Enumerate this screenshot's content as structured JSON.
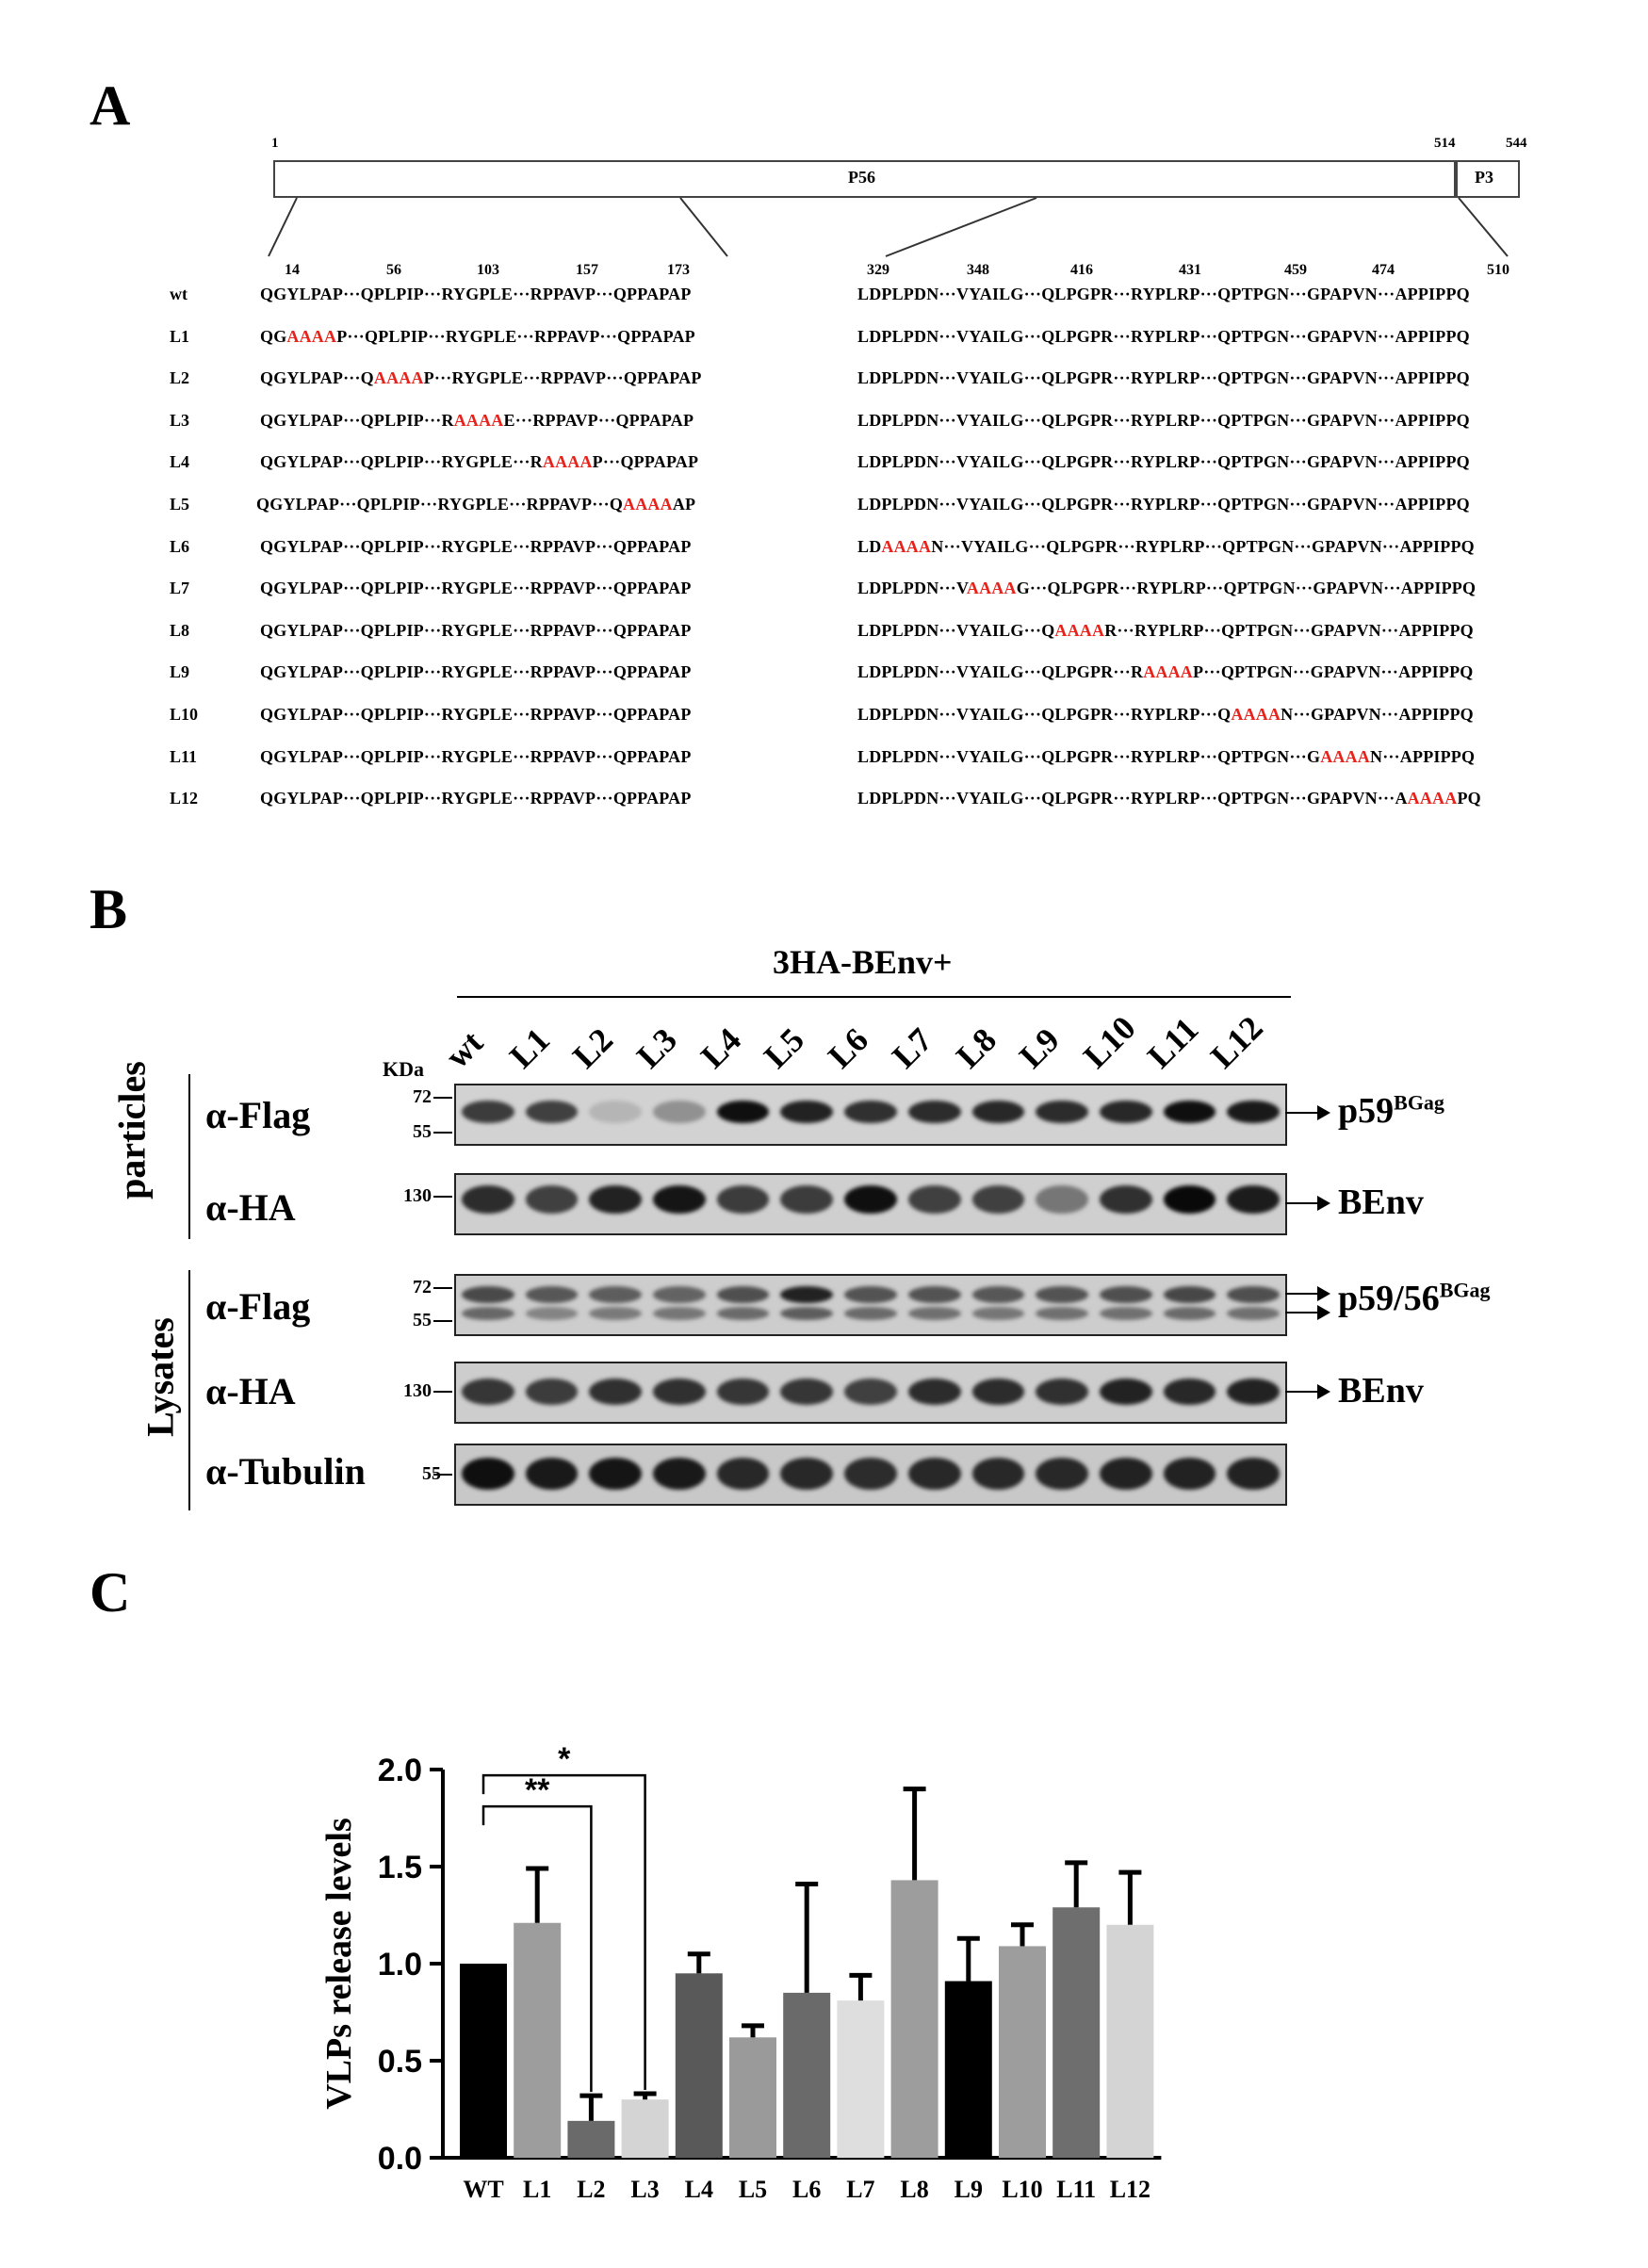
{
  "panelA": {
    "letter": "A",
    "domain_start": "1",
    "domain_boundary": "514",
    "domain_end": "544",
    "domain_main": "P56",
    "domain_small": "P3",
    "left_positions": [
      "14",
      "56",
      "103",
      "157",
      "173"
    ],
    "right_positions": [
      "329",
      "348",
      "416",
      "431",
      "459",
      "474",
      "510"
    ],
    "sep": "···",
    "rows": [
      {
        "label": "wt",
        "left": [
          [
            "QGYLPAP"
          ],
          [
            "QPLPIP"
          ],
          [
            "RYGPLE"
          ],
          [
            "RPPAVP"
          ],
          [
            "QPPAPAP"
          ]
        ],
        "right": [
          [
            "LDPLPDN"
          ],
          [
            "VYAILG"
          ],
          [
            "QLPGPR"
          ],
          [
            "RYPLRP"
          ],
          [
            "QPTPGN"
          ],
          [
            "GPAPVN"
          ],
          [
            "APPIPPQ"
          ]
        ]
      },
      {
        "label": "L1",
        "left": [
          [
            "QG",
            "AAAA",
            "P"
          ],
          [
            "QPLPIP"
          ],
          [
            "RYGPLE"
          ],
          [
            "RPPAVP"
          ],
          [
            "QPPAPAP"
          ]
        ],
        "right": [
          [
            "LDPLPDN"
          ],
          [
            "VYAILG"
          ],
          [
            "QLPGPR"
          ],
          [
            "RYPLRP"
          ],
          [
            "QPTPGN"
          ],
          [
            "GPAPVN"
          ],
          [
            "APPIPPQ"
          ]
        ]
      },
      {
        "label": "L2",
        "left": [
          [
            "QGYLPAP"
          ],
          [
            "Q",
            "AAAA",
            "P"
          ],
          [
            "RYGPLE"
          ],
          [
            "RPPAVP"
          ],
          [
            "QPPAPAP"
          ]
        ],
        "right": [
          [
            "LDPLPDN"
          ],
          [
            "VYAILG"
          ],
          [
            "QLPGPR"
          ],
          [
            "RYPLRP"
          ],
          [
            "QPTPGN"
          ],
          [
            "GPAPVN"
          ],
          [
            "APPIPPQ"
          ]
        ]
      },
      {
        "label": "L3",
        "left": [
          [
            "QGYLPAP"
          ],
          [
            "QPLPIP"
          ],
          [
            "R",
            "AAAA",
            "E"
          ],
          [
            "RPPAVP"
          ],
          [
            "QPPAPAP"
          ]
        ],
        "right": [
          [
            "LDPLPDN"
          ],
          [
            "VYAILG"
          ],
          [
            "QLPGPR"
          ],
          [
            "RYPLRP"
          ],
          [
            "QPTPGN"
          ],
          [
            "GPAPVN"
          ],
          [
            "APPIPPQ"
          ]
        ]
      },
      {
        "label": "L4",
        "left": [
          [
            "QGYLPAP"
          ],
          [
            "QPLPIP"
          ],
          [
            "RYGPLE"
          ],
          [
            "R",
            "AAAA",
            "P"
          ],
          [
            "QPPAPAP"
          ]
        ],
        "right": [
          [
            "LDPLPDN"
          ],
          [
            "VYAILG"
          ],
          [
            "QLPGPR"
          ],
          [
            "RYPLRP"
          ],
          [
            "QPTPGN"
          ],
          [
            "GPAPVN"
          ],
          [
            "APPIPPQ"
          ]
        ]
      },
      {
        "label": "L5",
        "left": [
          [
            "QGYLPAP"
          ],
          [
            "QPLPIP"
          ],
          [
            "RYGPLE"
          ],
          [
            "RPPAVP"
          ],
          [
            "Q",
            "AAAA",
            "AP"
          ]
        ],
        "right": [
          [
            "LDPLPDN"
          ],
          [
            "VYAILG"
          ],
          [
            "QLPGPR"
          ],
          [
            "RYPLRP"
          ],
          [
            "QPTPGN"
          ],
          [
            "GPAPVN"
          ],
          [
            "APPIPPQ"
          ]
        ]
      },
      {
        "label": "L6",
        "left": [
          [
            "QGYLPAP"
          ],
          [
            "QPLPIP"
          ],
          [
            "RYGPLE"
          ],
          [
            "RPPAVP"
          ],
          [
            "QPPAPAP"
          ]
        ],
        "right": [
          [
            "LD",
            "AAAA",
            "N"
          ],
          [
            "VYAILG"
          ],
          [
            "QLPGPR"
          ],
          [
            "RYPLRP"
          ],
          [
            "QPTPGN"
          ],
          [
            "GPAPVN"
          ],
          [
            "APPIPPQ"
          ]
        ]
      },
      {
        "label": "L7",
        "left": [
          [
            "QGYLPAP"
          ],
          [
            "QPLPIP"
          ],
          [
            "RYGPLE"
          ],
          [
            "RPPAVP"
          ],
          [
            "QPPAPAP"
          ]
        ],
        "right": [
          [
            "LDPLPDN"
          ],
          [
            "V",
            "AAAA",
            "G"
          ],
          [
            "QLPGPR"
          ],
          [
            "RYPLRP"
          ],
          [
            "QPTPGN"
          ],
          [
            "GPAPVN"
          ],
          [
            "APPIPPQ"
          ]
        ]
      },
      {
        "label": "L8",
        "left": [
          [
            "QGYLPAP"
          ],
          [
            "QPLPIP"
          ],
          [
            "RYGPLE"
          ],
          [
            "RPPAVP"
          ],
          [
            "QPPAPAP"
          ]
        ],
        "right": [
          [
            "LDPLPDN"
          ],
          [
            "VYAILG"
          ],
          [
            "Q",
            "AAAA",
            "R"
          ],
          [
            "RYPLRP"
          ],
          [
            "QPTPGN"
          ],
          [
            "GPAPVN"
          ],
          [
            "APPIPPQ"
          ]
        ]
      },
      {
        "label": "L9",
        "left": [
          [
            "QGYLPAP"
          ],
          [
            "QPLPIP"
          ],
          [
            "RYGPLE"
          ],
          [
            "RPPAVP"
          ],
          [
            "QPPAPAP"
          ]
        ],
        "right": [
          [
            "LDPLPDN"
          ],
          [
            "VYAILG"
          ],
          [
            "QLPGPR"
          ],
          [
            "R",
            "AAAA",
            "P"
          ],
          [
            "QPTPGN"
          ],
          [
            "GPAPVN"
          ],
          [
            "APPIPPQ"
          ]
        ]
      },
      {
        "label": "L10",
        "left": [
          [
            "QGYLPAP"
          ],
          [
            "QPLPIP"
          ],
          [
            "RYGPLE"
          ],
          [
            "RPPAVP"
          ],
          [
            "QPPAPAP"
          ]
        ],
        "right": [
          [
            "LDPLPDN"
          ],
          [
            "VYAILG"
          ],
          [
            "QLPGPR"
          ],
          [
            "RYPLRP"
          ],
          [
            "Q",
            "AAAA",
            "N"
          ],
          [
            "GPAPVN"
          ],
          [
            "APPIPPQ"
          ]
        ]
      },
      {
        "label": "L11",
        "left": [
          [
            "QGYLPAP"
          ],
          [
            "QPLPIP"
          ],
          [
            "RYGPLE"
          ],
          [
            "RPPAVP"
          ],
          [
            "QPPAPAP"
          ]
        ],
        "right": [
          [
            "LDPLPDN"
          ],
          [
            "VYAILG"
          ],
          [
            "QLPGPR"
          ],
          [
            "RYPLRP"
          ],
          [
            "QPTPGN"
          ],
          [
            "G",
            "AAAA",
            "N"
          ],
          [
            "APPIPPQ"
          ]
        ]
      },
      {
        "label": "L12",
        "left": [
          [
            "QGYLPAP"
          ],
          [
            "QPLPIP"
          ],
          [
            "RYGPLE"
          ],
          [
            "RPPAVP"
          ],
          [
            "QPPAPAP"
          ]
        ],
        "right": [
          [
            "LDPLPDN"
          ],
          [
            "VYAILG"
          ],
          [
            "QLPGPR"
          ],
          [
            "RYPLRP"
          ],
          [
            "QPTPGN"
          ],
          [
            "GPAPVN"
          ],
          [
            "A",
            "AAAA",
            "PQ"
          ]
        ]
      }
    ]
  },
  "panelB": {
    "letter": "B",
    "construct": "3HA-BEnv+",
    "kda": "KDa",
    "lanes": [
      "wt",
      "L1",
      "L2",
      "L3",
      "L4",
      "L5",
      "L6",
      "L7",
      "L8",
      "L9",
      "L10",
      "L11",
      "L12"
    ],
    "groups": {
      "particles": "particles",
      "lysates": "Lysates"
    },
    "antibodies": {
      "flag": "α-Flag",
      "ha": "α-HA",
      "tubulin": "α-Tubulin"
    },
    "markers": {
      "m72": "72",
      "m55": "55",
      "m130": "130"
    },
    "band_labels": {
      "p59_main": "p59",
      "p59_sup": "BGag",
      "p5956_main": "p59/56",
      "p5956_sup": "BGag",
      "benv": "BEnv"
    },
    "intensity": {
      "particles_flag": [
        0.72,
        0.7,
        0.1,
        0.28,
        0.95,
        0.85,
        0.78,
        0.8,
        0.82,
        0.8,
        0.82,
        0.95,
        0.9
      ],
      "particles_ha": [
        0.8,
        0.7,
        0.85,
        0.92,
        0.72,
        0.72,
        0.95,
        0.7,
        0.7,
        0.42,
        0.78,
        0.98,
        0.88
      ],
      "lysates_flag_top": [
        0.65,
        0.58,
        0.55,
        0.52,
        0.62,
        0.85,
        0.6,
        0.6,
        0.58,
        0.6,
        0.62,
        0.66,
        0.62
      ],
      "lysates_flag_bottom": [
        0.5,
        0.35,
        0.4,
        0.42,
        0.48,
        0.55,
        0.48,
        0.45,
        0.42,
        0.45,
        0.45,
        0.48,
        0.45
      ],
      "lysates_ha": [
        0.75,
        0.72,
        0.78,
        0.78,
        0.75,
        0.75,
        0.7,
        0.8,
        0.8,
        0.78,
        0.85,
        0.82,
        0.85
      ],
      "tubulin": [
        0.95,
        0.9,
        0.92,
        0.9,
        0.82,
        0.82,
        0.8,
        0.82,
        0.82,
        0.82,
        0.85,
        0.85,
        0.85
      ]
    }
  },
  "panelC": {
    "letter": "C",
    "chart_data": {
      "type": "bar",
      "categories": [
        "WT",
        "L1",
        "L2",
        "L3",
        "L4",
        "L5",
        "L6",
        "L7",
        "L8",
        "L9",
        "L10",
        "L11",
        "L12"
      ],
      "values": [
        1.0,
        1.21,
        0.19,
        0.3,
        0.95,
        0.62,
        0.85,
        0.81,
        1.43,
        0.91,
        1.09,
        1.29,
        1.2
      ],
      "errors": [
        0.0,
        0.28,
        0.13,
        0.03,
        0.1,
        0.06,
        0.56,
        0.13,
        0.47,
        0.22,
        0.11,
        0.23,
        0.27
      ],
      "colors": [
        "#000000",
        "#9d9d9d",
        "#6a6a6a",
        "#d4d4d4",
        "#595959",
        "#9a9a9a",
        "#6a6a6a",
        "#dedede",
        "#9d9d9d",
        "#000000",
        "#9d9d9d",
        "#6e6e6e",
        "#d4d4d4"
      ],
      "ylabel": "VLPs release levels",
      "ylim": [
        0,
        2.0
      ],
      "yticks": [
        "0.0",
        "0.5",
        "1.0",
        "1.5",
        "2.0"
      ],
      "significance": [
        {
          "from": "WT",
          "to": "L2",
          "label": "**"
        },
        {
          "from": "WT",
          "to": "L3",
          "label": "*"
        }
      ]
    }
  }
}
